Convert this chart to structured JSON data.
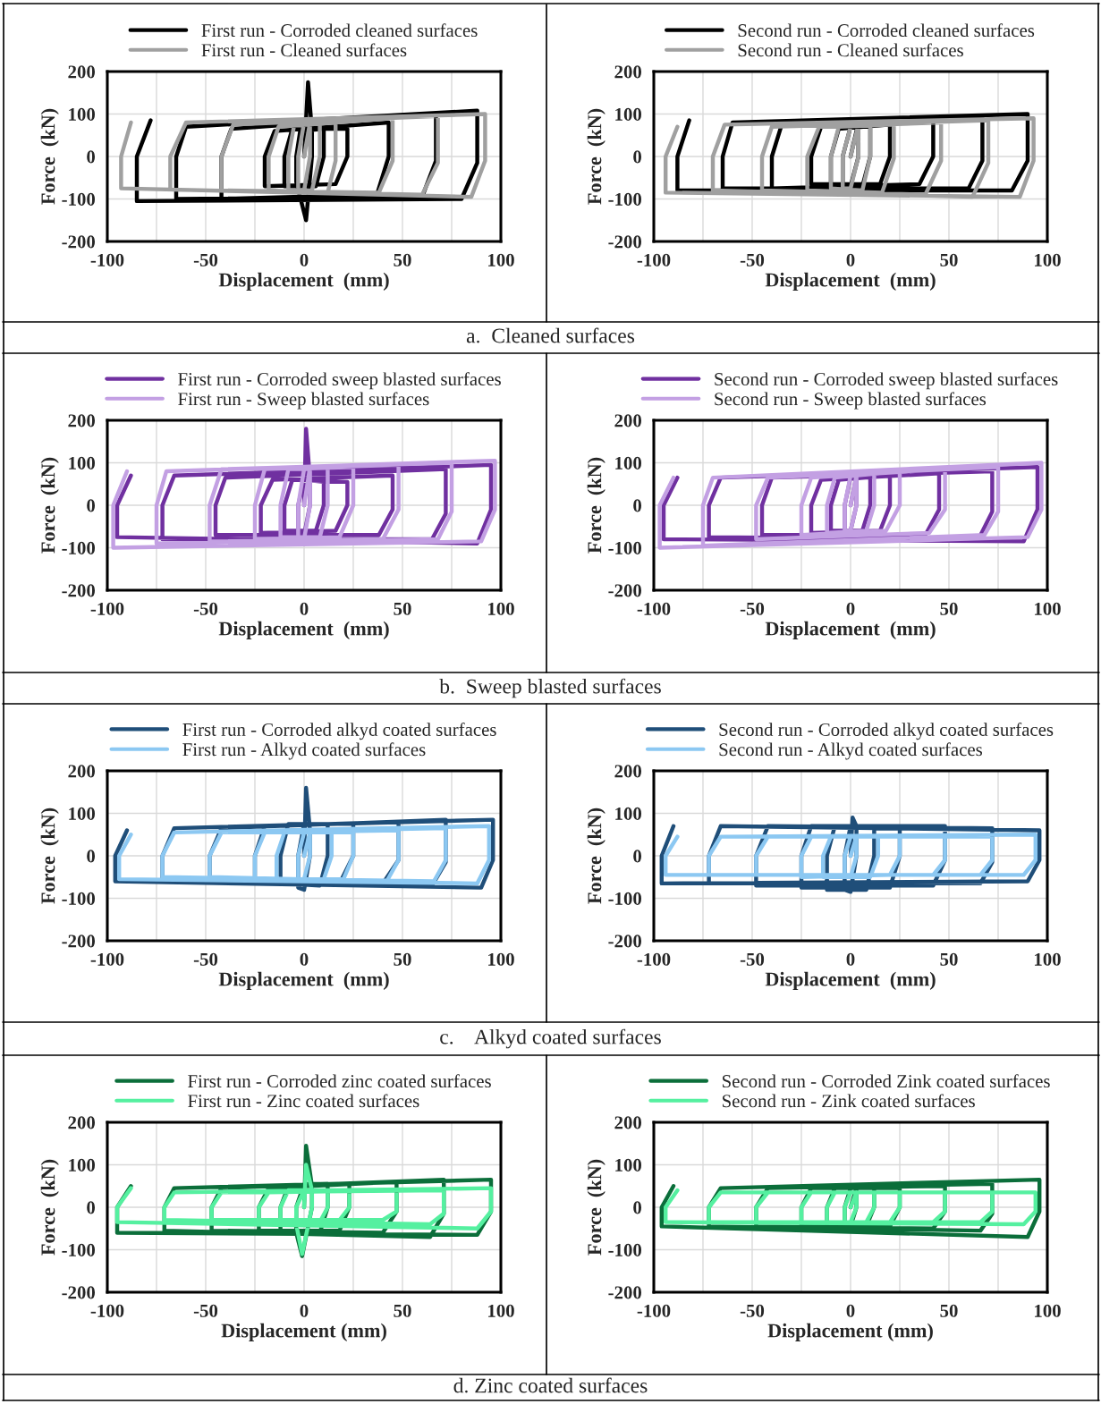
{
  "chart_data": [
    {
      "type": "line",
      "xlabel": "Displacement  (mm)",
      "ylabel": "Force  (kN)",
      "xlim": [
        -100,
        100
      ],
      "ylim": [
        -200,
        200
      ],
      "xticks": [
        -100,
        {
          "value": -75,
          "label": null
        },
        -50,
        {
          "value": -25,
          "label": null
        },
        0,
        {
          "value": 25,
          "label": null
        },
        50,
        {
          "value": 75,
          "label": null
        },
        100
      ],
      "yticks": [
        -200,
        -100,
        0,
        100,
        200
      ],
      "grid": true,
      "legend": "top",
      "line_style": "solid",
      "annotations": [
        "a.  Cleaned surfaces"
      ],
      "series": [
        {
          "name": "First run - Corroded cleaned surfaces",
          "color": "#000000",
          "x": [
            0,
            2,
            4,
            4,
            1,
            -4,
            -4,
            -2,
            10,
            10,
            6,
            -10,
            -10,
            -6,
            22,
            22,
            16,
            -20,
            -20,
            -15,
            43,
            43,
            37,
            -42,
            -42,
            -37,
            67,
            67,
            60,
            -65,
            -65,
            -60,
            88,
            88,
            80,
            -85,
            -85,
            -78
          ],
          "values": [
            0,
            175,
            60,
            0,
            -150,
            -60,
            0,
            60,
            65,
            0,
            -70,
            -70,
            0,
            65,
            65,
            0,
            -65,
            -70,
            0,
            60,
            80,
            0,
            -90,
            -100,
            0,
            65,
            100,
            -10,
            -95,
            -100,
            0,
            70,
            108,
            -15,
            -100,
            -105,
            0,
            85
          ]
        },
        {
          "name": "First run - Cleaned surfaces",
          "color": "#a0a0a0",
          "x": [
            0,
            3,
            3,
            0,
            -3,
            -3,
            0,
            8,
            8,
            4,
            -8,
            -8,
            -5,
            16,
            16,
            12,
            -18,
            -18,
            -13,
            45,
            45,
            38,
            -42,
            -42,
            -36,
            68,
            68,
            60,
            -68,
            -68,
            -60,
            92,
            92,
            85,
            -93,
            -93,
            -88
          ],
          "values": [
            0,
            80,
            0,
            -80,
            -80,
            0,
            80,
            80,
            0,
            -80,
            -80,
            0,
            75,
            85,
            -10,
            -85,
            -80,
            0,
            70,
            90,
            -10,
            -85,
            -80,
            0,
            75,
            95,
            -15,
            -90,
            -78,
            0,
            80,
            100,
            -10,
            -95,
            -75,
            0,
            80
          ]
        }
      ]
    },
    {
      "type": "line",
      "xlabel": "Displacement  (mm)",
      "ylabel": "Force  (kN)",
      "xlim": [
        -100,
        100
      ],
      "ylim": [
        -200,
        200
      ],
      "xticks": [
        -100,
        {
          "value": -75,
          "label": null
        },
        -50,
        {
          "value": -25,
          "label": null
        },
        0,
        {
          "value": 25,
          "label": null
        },
        50,
        {
          "value": 75,
          "label": null
        },
        100
      ],
      "yticks": [
        -200,
        -100,
        0,
        100,
        200
      ],
      "grid": true,
      "legend": "top",
      "line_style": "solid",
      "series": [
        {
          "name": "Second run - Corroded cleaned surfaces",
          "color": "#000000",
          "x": [
            0,
            4,
            4,
            0,
            -4,
            -4,
            0,
            10,
            10,
            6,
            -10,
            -10,
            -6,
            20,
            20,
            15,
            -20,
            -20,
            -15,
            42,
            42,
            35,
            -40,
            -40,
            -35,
            67,
            67,
            60,
            -65,
            -65,
            -60,
            90,
            90,
            82,
            -88,
            -88,
            -82
          ],
          "values": [
            0,
            80,
            0,
            -70,
            -70,
            0,
            70,
            75,
            0,
            -70,
            -65,
            0,
            65,
            75,
            0,
            -65,
            -65,
            0,
            70,
            85,
            0,
            -65,
            -75,
            0,
            75,
            95,
            -10,
            -75,
            -75,
            0,
            80,
            100,
            -10,
            -80,
            -80,
            0,
            85
          ]
        },
        {
          "name": "Second run - Cleaned surfaces",
          "color": "#a0a0a0",
          "x": [
            0,
            4,
            4,
            0,
            -4,
            -4,
            0,
            10,
            10,
            6,
            -10,
            -10,
            -6,
            22,
            22,
            16,
            -22,
            -22,
            -16,
            46,
            46,
            38,
            -45,
            -45,
            -40,
            70,
            70,
            62,
            -70,
            -70,
            -64,
            93,
            93,
            86,
            -94,
            -94,
            -88
          ],
          "values": [
            0,
            75,
            0,
            -75,
            -75,
            0,
            70,
            75,
            0,
            -80,
            -75,
            0,
            70,
            75,
            -5,
            -85,
            -80,
            0,
            70,
            80,
            -10,
            -90,
            -80,
            0,
            70,
            85,
            -15,
            -95,
            -80,
            0,
            75,
            90,
            -10,
            -95,
            -85,
            0,
            70
          ]
        }
      ]
    },
    {
      "type": "line",
      "xlabel": "Displacement  (mm)",
      "ylabel": "Force  (kN)",
      "xlim": [
        -100,
        100
      ],
      "ylim": [
        -200,
        200
      ],
      "xticks": [
        -100,
        {
          "value": -75,
          "label": null
        },
        -50,
        {
          "value": -25,
          "label": null
        },
        0,
        {
          "value": 25,
          "label": null
        },
        50,
        {
          "value": 75,
          "label": null
        },
        100
      ],
      "yticks": [
        -200,
        -100,
        0,
        100,
        200
      ],
      "grid": true,
      "legend": "top",
      "line_style": "solid",
      "annotations": [
        "b.  Sweep blasted surfaces"
      ],
      "series": [
        {
          "name": "First run - Corroded sweep blasted surfaces",
          "color": "#7030a0",
          "x": [
            0,
            1,
            3,
            3,
            0,
            -3,
            -3,
            0,
            10,
            10,
            6,
            -10,
            -10,
            -6,
            22,
            22,
            16,
            -22,
            -22,
            -16,
            45,
            45,
            38,
            -45,
            -45,
            -40,
            72,
            72,
            65,
            -72,
            -72,
            -66,
            95,
            95,
            88,
            -95,
            -95,
            -88
          ],
          "values": [
            0,
            180,
            60,
            0,
            -70,
            -60,
            0,
            60,
            55,
            0,
            -60,
            -60,
            0,
            60,
            55,
            0,
            -60,
            -65,
            0,
            60,
            70,
            -10,
            -70,
            -70,
            0,
            65,
            85,
            -20,
            -80,
            -80,
            0,
            70,
            95,
            -10,
            -90,
            -75,
            0,
            70
          ]
        },
        {
          "name": "First run - Sweep blasted surfaces",
          "color": "#c3a0e3",
          "x": [
            0,
            3,
            3,
            0,
            -3,
            -3,
            0,
            12,
            12,
            8,
            -12,
            -12,
            -8,
            25,
            25,
            18,
            -25,
            -25,
            -20,
            48,
            48,
            40,
            -48,
            -48,
            -42,
            75,
            75,
            68,
            -75,
            -75,
            -70,
            97,
            97,
            90,
            -97,
            -97,
            -90
          ],
          "values": [
            0,
            90,
            0,
            -80,
            -80,
            0,
            85,
            90,
            0,
            -75,
            -75,
            0,
            85,
            90,
            0,
            -75,
            -80,
            0,
            85,
            95,
            -10,
            -80,
            -85,
            0,
            85,
            100,
            -15,
            -80,
            -90,
            0,
            80,
            105,
            -10,
            -85,
            -100,
            0,
            80
          ]
        }
      ]
    },
    {
      "type": "line",
      "xlabel": "Displacement  (mm)",
      "ylabel": "Force  (kN)",
      "xlim": [
        -100,
        100
      ],
      "ylim": [
        -200,
        200
      ],
      "xticks": [
        -100,
        {
          "value": -75,
          "label": null
        },
        -50,
        {
          "value": -25,
          "label": null
        },
        0,
        {
          "value": 25,
          "label": null
        },
        50,
        {
          "value": 75,
          "label": null
        },
        100
      ],
      "yticks": [
        -200,
        -100,
        0,
        100,
        200
      ],
      "grid": true,
      "legend": "top",
      "line_style": "solid",
      "series": [
        {
          "name": "Second run - Corroded sweep blasted surfaces",
          "color": "#7030a0",
          "x": [
            0,
            3,
            3,
            0,
            -3,
            -3,
            0,
            10,
            10,
            6,
            -10,
            -10,
            -6,
            20,
            20,
            15,
            -20,
            -20,
            -15,
            45,
            45,
            38,
            -45,
            -45,
            -40,
            72,
            72,
            65,
            -72,
            -72,
            -66,
            95,
            95,
            88,
            -95,
            -95,
            -88
          ],
          "values": [
            0,
            70,
            0,
            -60,
            -60,
            0,
            65,
            65,
            0,
            -60,
            -60,
            0,
            60,
            70,
            0,
            -60,
            -65,
            0,
            60,
            75,
            -10,
            -70,
            -70,
            0,
            65,
            80,
            -15,
            -80,
            -75,
            0,
            65,
            90,
            -10,
            -85,
            -80,
            0,
            65
          ]
        },
        {
          "name": "Second run - Sweep blasted surfaces",
          "color": "#c3a0e3",
          "x": [
            0,
            3,
            3,
            0,
            -3,
            -3,
            0,
            12,
            12,
            8,
            -12,
            -12,
            -8,
            25,
            25,
            18,
            -25,
            -25,
            -20,
            48,
            48,
            40,
            -48,
            -48,
            -42,
            75,
            75,
            68,
            -75,
            -75,
            -70,
            97,
            97,
            90,
            -97,
            -97,
            -90
          ],
          "values": [
            0,
            70,
            0,
            -60,
            -60,
            0,
            70,
            75,
            0,
            -60,
            -65,
            0,
            65,
            80,
            0,
            -60,
            -70,
            0,
            65,
            85,
            -10,
            -65,
            -80,
            0,
            65,
            90,
            -15,
            -70,
            -95,
            0,
            65,
            100,
            -10,
            -75,
            -100,
            0,
            65
          ]
        }
      ]
    },
    {
      "type": "line",
      "xlabel": "Displacement  (mm)",
      "ylabel": "Force  (kN)",
      "xlim": [
        -100,
        100
      ],
      "ylim": [
        -200,
        200
      ],
      "xticks": [
        -100,
        {
          "value": -75,
          "label": null
        },
        -50,
        {
          "value": -25,
          "label": null
        },
        0,
        {
          "value": 25,
          "label": null
        },
        50,
        {
          "value": 75,
          "label": null
        },
        100
      ],
      "yticks": [
        -200,
        -100,
        0,
        100,
        200
      ],
      "grid": true,
      "legend": "top",
      "line_style": "solid",
      "annotations": [
        "c.    Alkyd coated surfaces"
      ],
      "series": [
        {
          "name": "First run - Corroded alkyd coated surfaces",
          "color": "#1f4e79",
          "x": [
            0,
            1,
            3,
            3,
            0,
            -3,
            -3,
            0,
            12,
            12,
            8,
            -12,
            -12,
            -8,
            25,
            25,
            18,
            -25,
            -25,
            -20,
            48,
            48,
            40,
            -48,
            -48,
            -42,
            72,
            72,
            65,
            -72,
            -72,
            -66,
            96,
            96,
            90,
            -96,
            -96,
            -90
          ],
          "values": [
            0,
            160,
            60,
            0,
            -80,
            -75,
            0,
            75,
            75,
            0,
            -70,
            -65,
            0,
            75,
            75,
            0,
            -65,
            -60,
            0,
            70,
            80,
            -10,
            -65,
            -55,
            0,
            65,
            85,
            -15,
            -70,
            -55,
            0,
            65,
            85,
            -10,
            -75,
            -60,
            0,
            60
          ]
        },
        {
          "name": "First run - Alkyd coated surfaces",
          "color": "#8cc8f2",
          "x": [
            0,
            3,
            3,
            0,
            -3,
            -3,
            0,
            14,
            14,
            10,
            -14,
            -14,
            -10,
            25,
            25,
            20,
            -25,
            -25,
            -20,
            48,
            48,
            42,
            -48,
            -48,
            -42,
            72,
            72,
            66,
            -72,
            -72,
            -66,
            94,
            94,
            88,
            -94,
            -94,
            -88
          ],
          "values": [
            0,
            55,
            0,
            -55,
            -55,
            0,
            55,
            55,
            0,
            -55,
            -55,
            0,
            55,
            55,
            0,
            -55,
            -55,
            0,
            55,
            60,
            -10,
            -60,
            -50,
            0,
            55,
            65,
            -10,
            -60,
            -50,
            0,
            55,
            70,
            -10,
            -65,
            -55,
            0,
            50
          ]
        }
      ]
    },
    {
      "type": "line",
      "xlabel": "Displacement  (mm)",
      "ylabel": "Force  (kN)",
      "xlim": [
        -100,
        100
      ],
      "ylim": [
        -200,
        200
      ],
      "xticks": [
        -100,
        {
          "value": -75,
          "label": null
        },
        -50,
        {
          "value": -25,
          "label": null
        },
        0,
        {
          "value": 25,
          "label": null
        },
        50,
        {
          "value": 75,
          "label": null
        },
        100
      ],
      "yticks": [
        -200,
        -100,
        0,
        100,
        200
      ],
      "grid": true,
      "legend": "top",
      "line_style": "solid",
      "series": [
        {
          "name": "Second run - Corroded alkyd coated surfaces",
          "color": "#1f4e79",
          "x": [
            0,
            1,
            3,
            3,
            0,
            -3,
            -3,
            0,
            12,
            12,
            8,
            -12,
            -12,
            -8,
            25,
            25,
            20,
            -25,
            -25,
            -20,
            48,
            48,
            42,
            -48,
            -48,
            -42,
            72,
            72,
            66,
            -72,
            -72,
            -66,
            96,
            96,
            90,
            -96,
            -96,
            -90
          ],
          "values": [
            0,
            90,
            70,
            0,
            -85,
            -80,
            0,
            70,
            70,
            0,
            -80,
            -80,
            0,
            70,
            70,
            0,
            -75,
            -75,
            0,
            70,
            70,
            -10,
            -70,
            -70,
            0,
            70,
            65,
            -15,
            -65,
            -65,
            0,
            70,
            60,
            -10,
            -60,
            -65,
            0,
            70
          ]
        },
        {
          "name": "Second run - Alkyd coated surfaces",
          "color": "#8cc8f2",
          "x": [
            0,
            3,
            3,
            0,
            -3,
            -3,
            0,
            14,
            14,
            10,
            -14,
            -14,
            -10,
            25,
            25,
            20,
            -25,
            -25,
            -20,
            48,
            48,
            42,
            -48,
            -48,
            -42,
            72,
            72,
            66,
            -72,
            -72,
            -66,
            94,
            94,
            88,
            -94,
            -94,
            -88
          ],
          "values": [
            0,
            45,
            0,
            -50,
            -50,
            0,
            45,
            45,
            0,
            -50,
            -50,
            0,
            45,
            45,
            0,
            -45,
            -50,
            0,
            45,
            45,
            -10,
            -45,
            -45,
            0,
            45,
            45,
            -10,
            -45,
            -45,
            0,
            45,
            50,
            -10,
            -45,
            -45,
            0,
            45
          ]
        }
      ]
    },
    {
      "type": "line",
      "xlabel": "Displacement (mm)",
      "ylabel": "Force  (kN)",
      "xlim": [
        -100,
        100
      ],
      "ylim": [
        -200,
        200
      ],
      "xticks": [
        -100,
        {
          "value": -75,
          "label": null
        },
        -50,
        {
          "value": -25,
          "label": null
        },
        0,
        {
          "value": 25,
          "label": null
        },
        50,
        {
          "value": 75,
          "label": null
        },
        100
      ],
      "yticks": [
        -200,
        -100,
        0,
        100,
        200
      ],
      "grid": true,
      "legend": "top",
      "line_style": "solid",
      "annotations": [
        "d. Zinc coated surfaces"
      ],
      "series": [
        {
          "name": "First run - Corroded zinc coated surfaces",
          "color": "#0b6e3a",
          "x": [
            0,
            1,
            4,
            4,
            -1,
            -4,
            -4,
            0,
            12,
            12,
            8,
            -12,
            -12,
            -8,
            23,
            23,
            18,
            -23,
            -23,
            -18,
            47,
            47,
            40,
            -47,
            -47,
            -42,
            71,
            71,
            64,
            -71,
            -71,
            -66,
            95,
            95,
            88,
            -95,
            -95,
            -88
          ],
          "values": [
            0,
            145,
            50,
            0,
            -115,
            -60,
            0,
            55,
            55,
            0,
            -60,
            -60,
            0,
            50,
            55,
            0,
            -55,
            -55,
            0,
            45,
            60,
            -10,
            -60,
            -55,
            0,
            45,
            65,
            -15,
            -70,
            -55,
            0,
            45,
            65,
            -10,
            -65,
            -60,
            0,
            50
          ]
        },
        {
          "name": "First run - Zinc coated surfaces",
          "color": "#55f0a0",
          "x": [
            0,
            1,
            4,
            4,
            -1,
            -4,
            -4,
            0,
            12,
            12,
            8,
            -12,
            -12,
            -8,
            23,
            23,
            18,
            -23,
            -23,
            -18,
            47,
            47,
            40,
            -47,
            -47,
            -42,
            71,
            71,
            64,
            -71,
            -71,
            -66,
            95,
            95,
            88,
            -95,
            -95,
            -88
          ],
          "values": [
            0,
            100,
            40,
            0,
            -110,
            -40,
            0,
            40,
            40,
            0,
            -35,
            -35,
            0,
            40,
            40,
            0,
            -30,
            -30,
            0,
            35,
            40,
            -10,
            -30,
            -30,
            0,
            35,
            40,
            -15,
            -40,
            -30,
            0,
            35,
            45,
            -10,
            -50,
            -35,
            0,
            45
          ]
        }
      ]
    },
    {
      "type": "line",
      "xlabel": "Displacement (mm)",
      "ylabel": "Force  (kN)",
      "xlim": [
        -100,
        100
      ],
      "ylim": [
        -200,
        200
      ],
      "xticks": [
        -100,
        {
          "value": -75,
          "label": null
        },
        -50,
        {
          "value": -25,
          "label": null
        },
        0,
        {
          "value": 25,
          "label": null
        },
        50,
        {
          "value": 75,
          "label": null
        },
        100
      ],
      "yticks": [
        -200,
        -100,
        0,
        100,
        200
      ],
      "grid": true,
      "legend": "top",
      "line_style": "solid",
      "series": [
        {
          "name": "Second run - Corroded Zink coated surfaces",
          "color": "#0b6e3a",
          "x": [
            0,
            3,
            3,
            0,
            -3,
            -3,
            0,
            12,
            12,
            8,
            -12,
            -12,
            -8,
            25,
            25,
            20,
            -25,
            -25,
            -20,
            48,
            48,
            42,
            -48,
            -48,
            -42,
            72,
            72,
            66,
            -72,
            -72,
            -66,
            96,
            96,
            90,
            -96,
            -96,
            -90
          ],
          "values": [
            0,
            45,
            0,
            -45,
            -45,
            0,
            45,
            45,
            0,
            -45,
            -45,
            0,
            45,
            45,
            0,
            -45,
            -45,
            0,
            45,
            50,
            -10,
            -50,
            -45,
            0,
            45,
            55,
            -15,
            -55,
            -45,
            0,
            45,
            65,
            -10,
            -70,
            -45,
            0,
            50
          ]
        },
        {
          "name": "Second run - Zink coated surfaces",
          "color": "#55f0a0",
          "x": [
            0,
            3,
            3,
            0,
            -3,
            -3,
            0,
            12,
            12,
            8,
            -12,
            -12,
            -8,
            25,
            25,
            20,
            -25,
            -25,
            -20,
            48,
            48,
            42,
            -48,
            -48,
            -42,
            72,
            72,
            66,
            -72,
            -72,
            -66,
            94,
            94,
            88,
            -94,
            -94,
            -88
          ],
          "values": [
            0,
            35,
            0,
            -35,
            -35,
            0,
            35,
            35,
            0,
            -35,
            -35,
            0,
            35,
            35,
            0,
            -35,
            -35,
            0,
            35,
            35,
            -10,
            -35,
            -35,
            0,
            35,
            35,
            -10,
            -35,
            -35,
            0,
            35,
            35,
            -10,
            -40,
            -35,
            0,
            40
          ]
        }
      ]
    }
  ]
}
